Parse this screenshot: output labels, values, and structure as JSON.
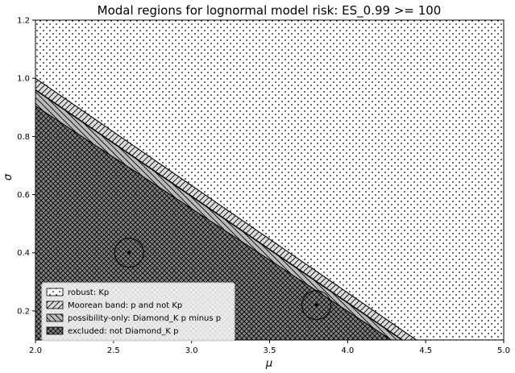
{
  "chart_data": {
    "type": "area",
    "title": "Modal regions for lognormal model risk: ES_0.99 >= 100",
    "xlabel": "μ",
    "ylabel": "σ",
    "xlim": [
      2.0,
      5.0
    ],
    "ylim": [
      0.1,
      1.2
    ],
    "xticks": [
      2.0,
      2.5,
      3.0,
      3.5,
      4.0,
      4.5,
      5.0
    ],
    "xtick_labels": [
      "2.0",
      "2.5",
      "3.0",
      "3.5",
      "4.0",
      "4.5",
      "5.0"
    ],
    "yticks": [
      0.2,
      0.4,
      0.6,
      0.8,
      1.0,
      1.2
    ],
    "ytick_labels": [
      "0.2",
      "0.4",
      "0.6",
      "0.8",
      "1.0",
      "1.2"
    ],
    "grid": false,
    "legend_position": "lower-left",
    "boundaries": [
      {
        "name": "excluded boundary",
        "points": [
          [
            2.0,
            0.905
          ],
          [
            4.28,
            0.1
          ]
        ]
      },
      {
        "name": "possibility boundary",
        "points": [
          [
            2.0,
            0.96
          ],
          [
            4.35,
            0.1
          ]
        ]
      },
      {
        "name": "moorean boundary",
        "points": [
          [
            2.0,
            1.0
          ],
          [
            4.44,
            0.1
          ]
        ]
      }
    ],
    "regions": [
      {
        "name": "robust: Kp",
        "fill": "#ffffff",
        "pattern": "dots"
      },
      {
        "name": "Moorean band: p and not Kp",
        "fill": "#dddddd",
        "pattern": "hatch"
      },
      {
        "name": "possibility-only: Diamond_K p minus p",
        "fill": "#bbbbbb",
        "pattern": "backhatch"
      },
      {
        "name": "excluded: not Diamond_K p",
        "fill": "#808080",
        "pattern": "crosshatch"
      }
    ],
    "markers": [
      {
        "x": 2.6,
        "y": 0.4
      },
      {
        "x": 3.8,
        "y": 0.22
      }
    ]
  }
}
